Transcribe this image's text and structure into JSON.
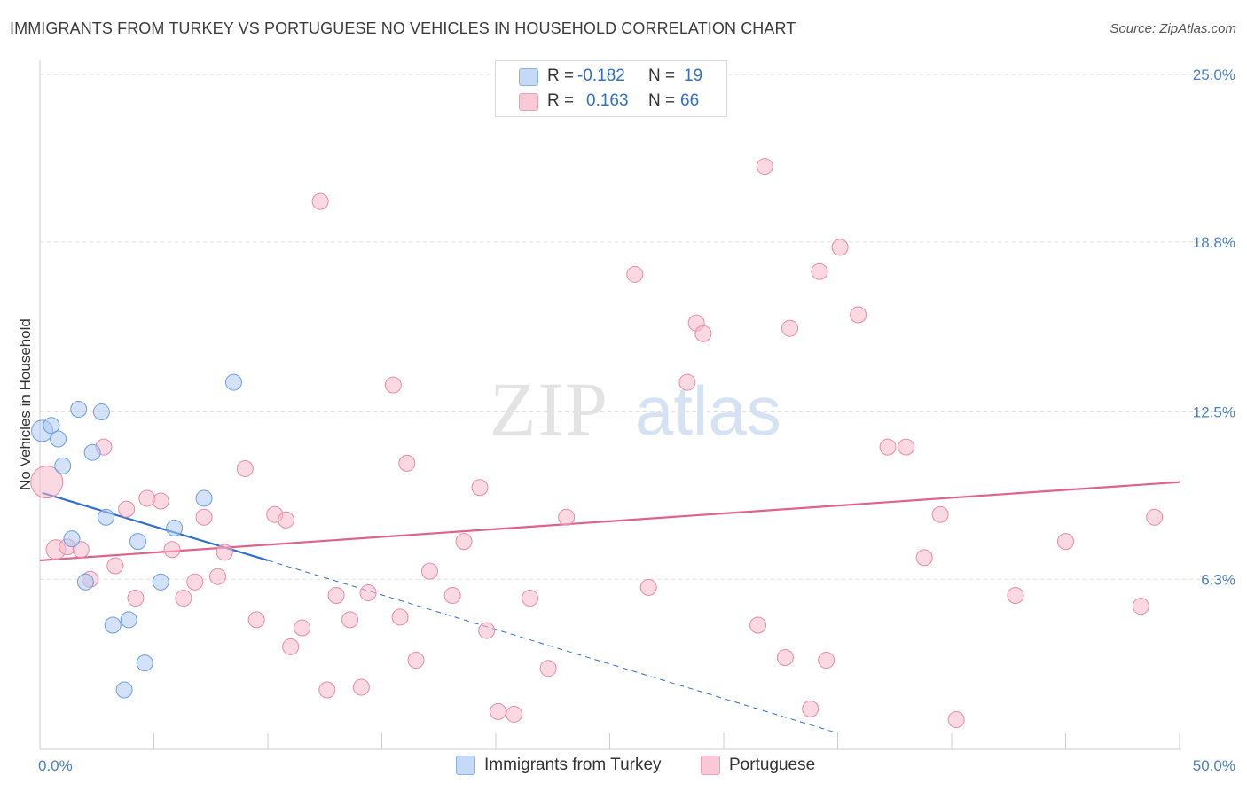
{
  "title": "IMMIGRANTS FROM TURKEY VS PORTUGUESE NO VEHICLES IN HOUSEHOLD CORRELATION CHART",
  "source": "Source: ZipAtlas.com",
  "watermark": {
    "zip": "ZIP",
    "atlas": "atlas"
  },
  "legend": {
    "rows": [
      {
        "r_label": "R =",
        "r_value": "-0.182",
        "n_label": "N =",
        "n_value": "19",
        "color": "#aecbf2"
      },
      {
        "r_label": "R =",
        "r_value": "0.163",
        "n_label": "N =",
        "n_value": "66",
        "color": "#f7b9cb"
      }
    ]
  },
  "bottom_legend": {
    "items": [
      {
        "label": "Immigrants from Turkey",
        "color": "#aecbf2"
      },
      {
        "label": "Portuguese",
        "color": "#f7b9cb"
      }
    ]
  },
  "colors": {
    "blue_fill": "#aecbf2",
    "blue_stroke": "#6a9fe0",
    "blue_line": "#2f6fd0",
    "pink_fill": "#f7b9cb",
    "pink_stroke": "#e88aa6",
    "pink_line": "#e0628c",
    "grid": "#dddddd",
    "axis_text": "#4a7fc7"
  },
  "chart_data": {
    "type": "scatter",
    "title": "IMMIGRANTS FROM TURKEY VS PORTUGUESE NO VEHICLES IN HOUSEHOLD CORRELATION CHART",
    "xlabel": "",
    "ylabel": "No Vehicles in Household",
    "xlim": [
      0,
      50
    ],
    "ylim": [
      0,
      25.2
    ],
    "x_tick_labels": [
      "0.0%",
      "50.0%"
    ],
    "y_ticks": [
      6.3,
      12.5,
      18.8,
      25.0
    ],
    "y_tick_labels": [
      "6.3%",
      "12.5%",
      "18.8%",
      "25.0%"
    ],
    "grid": true,
    "series": [
      {
        "name": "Immigrants from Turkey",
        "r": -0.182,
        "n": 19,
        "points": [
          [
            0.1,
            11.8,
            24
          ],
          [
            0.5,
            12.0,
            18
          ],
          [
            0.8,
            11.5,
            18
          ],
          [
            1.0,
            10.5,
            18
          ],
          [
            1.4,
            7.8,
            18
          ],
          [
            1.7,
            12.6,
            18
          ],
          [
            2.0,
            6.2,
            18
          ],
          [
            2.3,
            11.0,
            18
          ],
          [
            2.7,
            12.5,
            18
          ],
          [
            2.9,
            8.6,
            18
          ],
          [
            3.2,
            4.6,
            18
          ],
          [
            3.7,
            2.2,
            18
          ],
          [
            3.9,
            4.8,
            18
          ],
          [
            4.3,
            7.7,
            18
          ],
          [
            4.6,
            3.2,
            18
          ],
          [
            5.3,
            6.2,
            18
          ],
          [
            5.9,
            8.2,
            18
          ],
          [
            7.2,
            9.3,
            18
          ],
          [
            8.5,
            13.6,
            18
          ]
        ],
        "trend": {
          "x": [
            0.1,
            10.0
          ],
          "y": [
            9.5,
            7.0
          ]
        },
        "trend_extension": {
          "x": [
            10.0,
            35.0
          ],
          "y": [
            7.0,
            0.6
          ]
        }
      },
      {
        "name": "Portuguese",
        "r": 0.163,
        "n": 66,
        "points": [
          [
            0.3,
            9.9,
            36
          ],
          [
            0.7,
            7.4,
            22
          ],
          [
            1.2,
            7.5,
            18
          ],
          [
            1.8,
            7.4,
            18
          ],
          [
            2.2,
            6.3,
            18
          ],
          [
            2.8,
            11.2,
            18
          ],
          [
            3.3,
            6.8,
            18
          ],
          [
            3.8,
            8.9,
            18
          ],
          [
            4.2,
            5.6,
            18
          ],
          [
            4.7,
            9.3,
            18
          ],
          [
            5.3,
            9.2,
            18
          ],
          [
            5.8,
            7.4,
            18
          ],
          [
            6.3,
            5.6,
            18
          ],
          [
            6.8,
            6.2,
            18
          ],
          [
            7.2,
            8.6,
            18
          ],
          [
            7.8,
            6.4,
            18
          ],
          [
            8.1,
            7.3,
            18
          ],
          [
            9.0,
            10.4,
            18
          ],
          [
            9.5,
            4.8,
            18
          ],
          [
            10.3,
            8.7,
            18
          ],
          [
            10.8,
            8.5,
            18
          ],
          [
            11.0,
            3.8,
            18
          ],
          [
            11.5,
            4.5,
            18
          ],
          [
            12.3,
            20.3,
            18
          ],
          [
            12.6,
            2.2,
            18
          ],
          [
            13.0,
            5.7,
            18
          ],
          [
            13.6,
            4.8,
            18
          ],
          [
            14.1,
            2.3,
            18
          ],
          [
            14.4,
            5.8,
            18
          ],
          [
            15.5,
            13.5,
            18
          ],
          [
            15.8,
            4.9,
            18
          ],
          [
            16.1,
            10.6,
            18
          ],
          [
            16.5,
            3.3,
            18
          ],
          [
            17.1,
            6.6,
            18
          ],
          [
            18.1,
            5.7,
            18
          ],
          [
            18.6,
            7.7,
            18
          ],
          [
            19.3,
            9.7,
            18
          ],
          [
            19.6,
            4.4,
            18
          ],
          [
            20.1,
            1.4,
            18
          ],
          [
            20.8,
            1.3,
            18
          ],
          [
            21.5,
            5.6,
            18
          ],
          [
            22.3,
            3.0,
            18
          ],
          [
            23.1,
            8.6,
            18
          ],
          [
            26.1,
            17.6,
            18
          ],
          [
            26.7,
            6.0,
            18
          ],
          [
            28.4,
            13.6,
            18
          ],
          [
            28.8,
            15.8,
            18
          ],
          [
            29.1,
            15.4,
            18
          ],
          [
            31.5,
            4.6,
            18
          ],
          [
            31.8,
            21.6,
            18
          ],
          [
            32.7,
            3.4,
            18
          ],
          [
            32.9,
            15.6,
            18
          ],
          [
            33.8,
            1.5,
            18
          ],
          [
            34.2,
            17.7,
            18
          ],
          [
            34.5,
            3.3,
            18
          ],
          [
            35.1,
            18.6,
            18
          ],
          [
            35.9,
            16.1,
            18
          ],
          [
            37.2,
            11.2,
            18
          ],
          [
            38.0,
            11.2,
            18
          ],
          [
            38.8,
            7.1,
            18
          ],
          [
            39.5,
            8.7,
            18
          ],
          [
            40.2,
            1.1,
            18
          ],
          [
            42.8,
            5.7,
            18
          ],
          [
            45.0,
            7.7,
            18
          ],
          [
            48.3,
            5.3,
            18
          ],
          [
            48.9,
            8.6,
            18
          ]
        ],
        "trend": {
          "x": [
            0.0,
            50.0
          ],
          "y": [
            7.0,
            9.9
          ]
        }
      }
    ]
  }
}
